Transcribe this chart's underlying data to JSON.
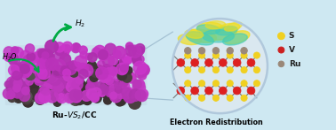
{
  "bg_color": "#cee8f2",
  "title_left": "Ru-$\\mathit{V}S_2$/CC",
  "title_right": "Electron Redistribution",
  "label_h2": "$H_2$",
  "label_h2o": "$H_2O$",
  "legend_items": [
    "S",
    "V",
    "Ru"
  ],
  "legend_colors": [
    "#f0d020",
    "#cc2020",
    "#9a8878"
  ],
  "legend_edge_colors": [
    "#b8a010",
    "#881010",
    "#6a5848"
  ],
  "arrow_color": "#00aa44",
  "circle_bg": "#dce8f0",
  "circle_outline": "#b0c8dc",
  "vs2_purple": "#cc44cc",
  "vs2_purple2": "#aa22aa",
  "vs2_dark": "#4a4040",
  "iso_cyan": "#40ccbb",
  "iso_yellow": "#eedd22",
  "atom_s_color": "#f0d020",
  "atom_s_edge": "#b8a010",
  "atom_v_color": "#dd2020",
  "atom_v_edge": "#991010",
  "atom_ru_color": "#9a8878",
  "atom_ru_edge": "#6a5848",
  "bond_color": "#777777",
  "figsize": [
    3.78,
    1.47
  ],
  "dpi": 100
}
